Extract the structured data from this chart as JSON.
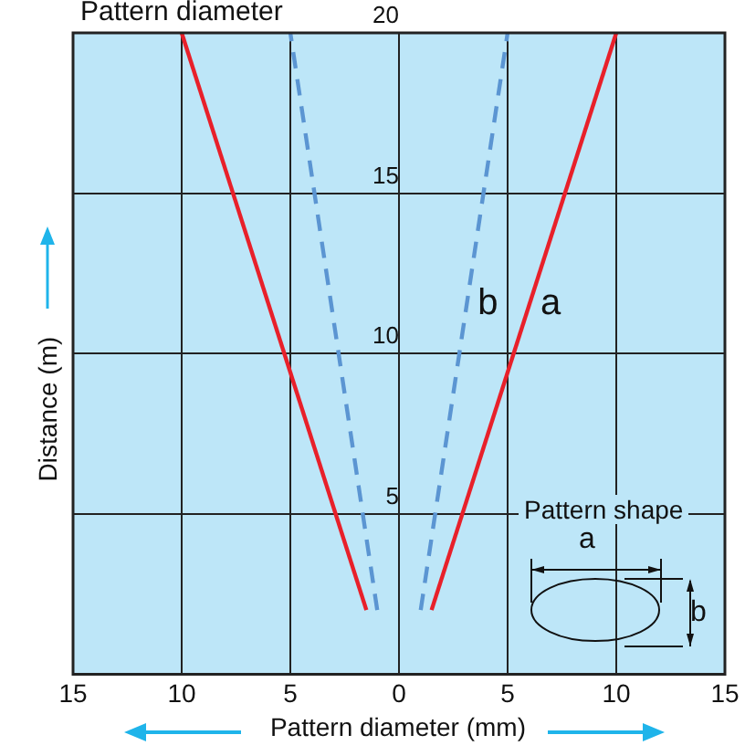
{
  "chart_data": {
    "type": "line",
    "xlabel": "Pattern diameter (mm)",
    "ylabel": "Distance (m)",
    "annotations": [
      "Pattern diameter",
      "Pattern shape"
    ],
    "xlim": [
      -15,
      15
    ],
    "xticks": [
      {
        "value": -15,
        "label": "15"
      },
      {
        "value": -10,
        "label": "10"
      },
      {
        "value": -5,
        "label": "5"
      },
      0,
      5,
      10,
      15
    ],
    "ylim": [
      0,
      20
    ],
    "yticks": [
      5,
      10,
      15,
      20
    ],
    "grid": true,
    "legend": false,
    "marker": "none",
    "series": [
      {
        "name": "a",
        "color": "#e8202a",
        "line_style": "solid",
        "x": [
          1.5,
          10
        ],
        "values": [
          2,
          20
        ]
      },
      {
        "color": "#e8202a",
        "line_style": "solid",
        "x": [
          -1.5,
          -10
        ],
        "values": [
          2,
          20
        ]
      },
      {
        "name": "b",
        "color": "#5b95d2",
        "line_style": "dashed",
        "x": [
          1,
          5
        ],
        "values": [
          2,
          20
        ]
      },
      {
        "color": "#5b95d2",
        "line_style": "dashed",
        "x": [
          -1,
          -5
        ],
        "values": [
          2,
          20
        ]
      }
    ]
  }
}
